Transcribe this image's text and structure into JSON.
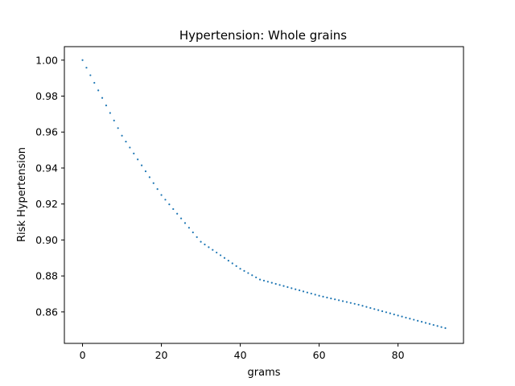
{
  "chart_data": {
    "type": "scatter",
    "title": "Hypertension: Whole grains",
    "xlabel": "grams",
    "ylabel": "Risk Hypertension",
    "xlim": [
      -4.6,
      96.6
    ],
    "ylim": [
      0.8425,
      1.0075
    ],
    "xticks": [
      0,
      20,
      40,
      60,
      80
    ],
    "xtick_labels": [
      "0",
      "20",
      "40",
      "60",
      "80"
    ],
    "yticks": [
      0.86,
      0.88,
      0.9,
      0.92,
      0.94,
      0.96,
      0.98,
      1.0
    ],
    "ytick_labels": [
      "0.86",
      "0.88",
      "0.90",
      "0.92",
      "0.94",
      "0.96",
      "0.98",
      "1.00"
    ],
    "grid": false,
    "legend": "none",
    "marker_color": "#1f77b4",
    "curve_anchors": {
      "x": [
        0,
        10,
        20,
        30,
        40,
        45,
        50,
        60,
        70,
        80,
        92
      ],
      "y": [
        1.0,
        0.958,
        0.925,
        0.899,
        0.884,
        0.878,
        0.875,
        0.869,
        0.864,
        0.858,
        0.851
      ]
    },
    "x_step": 1
  }
}
